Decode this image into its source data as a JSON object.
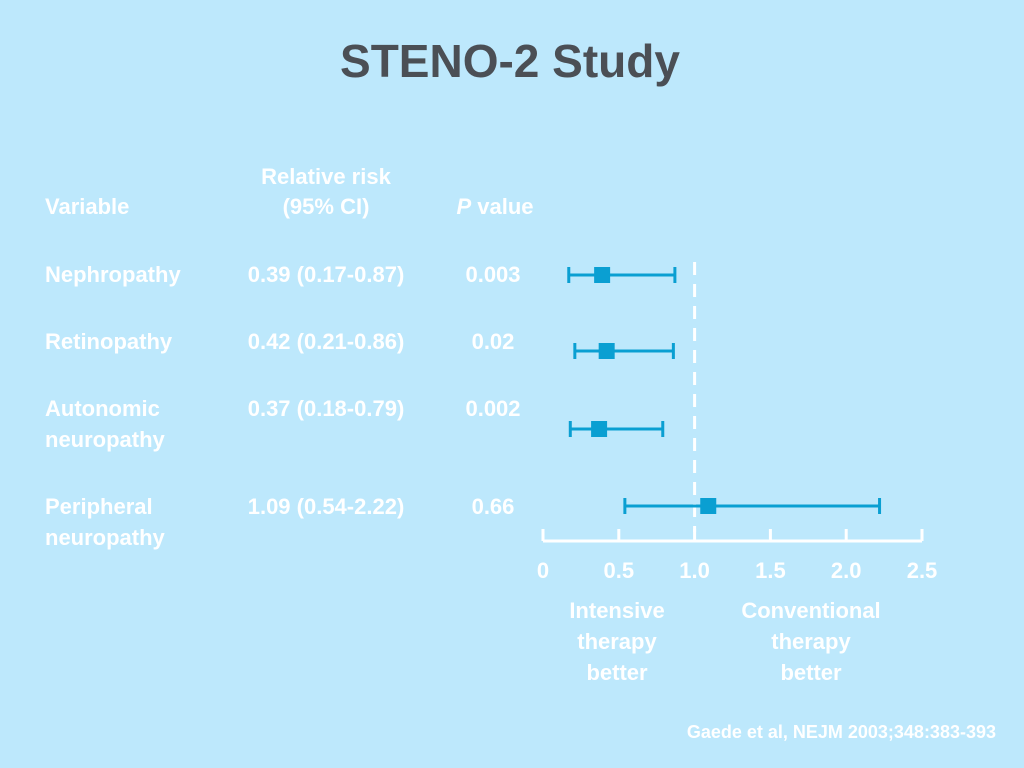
{
  "chart_data": {
    "type": "forest",
    "title": "STENO-2 Study",
    "columns": {
      "variable": "Variable",
      "relative_risk_line1": "Relative risk",
      "relative_risk_line2": "(95% CI)",
      "p_value_italic": "P",
      "p_value_rest": " value"
    },
    "rows": [
      {
        "variable_lines": [
          "Nephropathy"
        ],
        "rr_text": "0.39 (0.17-0.87)",
        "p": "0.003",
        "rr": 0.39,
        "ci": [
          0.17,
          0.87
        ]
      },
      {
        "variable_lines": [
          "Retinopathy"
        ],
        "rr_text": "0.42 (0.21-0.86)",
        "p": "0.02",
        "rr": 0.42,
        "ci": [
          0.21,
          0.86
        ]
      },
      {
        "variable_lines": [
          "Autonomic",
          "neuropathy"
        ],
        "rr_text": "0.37 (0.18-0.79)",
        "p": "0.002",
        "rr": 0.37,
        "ci": [
          0.18,
          0.79
        ]
      },
      {
        "variable_lines": [
          "Peripheral",
          "neuropathy"
        ],
        "rr_text": "1.09 (0.54-2.22)",
        "p": "0.66",
        "rr": 1.09,
        "ci": [
          0.54,
          2.22
        ]
      }
    ],
    "x_axis": {
      "range": [
        0,
        2.5
      ],
      "ticks": [
        0,
        0.5,
        1.0,
        1.5,
        2.0,
        2.5
      ],
      "tick_labels": [
        "0",
        "0.5",
        "1.0",
        "1.5",
        "2.0",
        "2.5"
      ],
      "reference_line": 1.0
    },
    "direction_labels": {
      "left": [
        "Intensive",
        "therapy",
        "better"
      ],
      "right": [
        "Conventional",
        "therapy",
        "better"
      ]
    },
    "citation": "Gaede et al, NEJM 2003;348:383-393"
  },
  "colors": {
    "background": "#bde8fc",
    "title": "#4b4f55",
    "text": "#ffffff",
    "marker": "#0a9fd2"
  }
}
